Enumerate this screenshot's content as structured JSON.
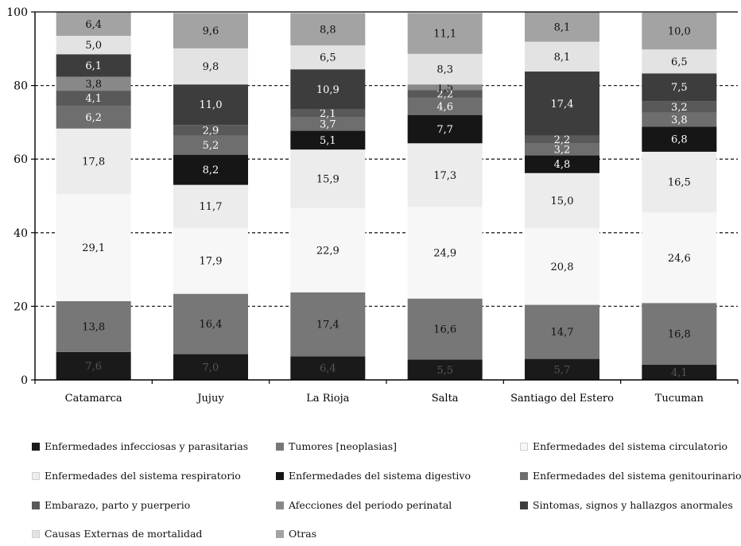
{
  "chart_data": {
    "type": "bar",
    "stacked": true,
    "title": "",
    "xlabel": "",
    "ylabel": "",
    "ylim": [
      0,
      100
    ],
    "yticks": [
      0,
      20,
      40,
      60,
      80,
      100
    ],
    "grid": "dashed-horizontal",
    "legend_position": "bottom",
    "categories": [
      "Catamarca",
      "Jujuy",
      "La Rioja",
      "Salta",
      "Santiago del Estero",
      "Tucuman"
    ],
    "series": [
      {
        "name": "Enfermedades infecciosas y parasitarias",
        "color": "#1a1a1a",
        "label_color": "#555555",
        "values": [
          7.6,
          7.0,
          6.4,
          5.5,
          5.7,
          4.1
        ],
        "labels": [
          "7,6",
          "7,0",
          "6,4",
          "5,5",
          "5,7",
          "4,1"
        ]
      },
      {
        "name": "Tumores [neoplasias]",
        "color": "#777777",
        "label_color": "#111111",
        "values": [
          13.8,
          16.4,
          17.4,
          16.6,
          14.7,
          16.8
        ],
        "labels": [
          "13,8",
          "16,4",
          "17,4",
          "16,6",
          "14,7",
          "16,8"
        ]
      },
      {
        "name": "Enfermedades del sistema circulatorio",
        "color": "#f7f7f7",
        "label_color": "#111111",
        "values": [
          29.1,
          17.9,
          22.9,
          24.9,
          20.8,
          24.6
        ],
        "labels": [
          "29,1",
          "17,9",
          "22,9",
          "24,9",
          "20,8",
          "24,6"
        ]
      },
      {
        "name": "Enfermedades del sistema respiratorio",
        "color": "#ececec",
        "label_color": "#111111",
        "values": [
          17.8,
          11.7,
          15.9,
          17.3,
          15.0,
          16.5
        ],
        "labels": [
          "17,8",
          "11,7",
          "15,9",
          "17,3",
          "15,0",
          "16,5"
        ]
      },
      {
        "name": "Enfermedades del sistema digestivo",
        "color": "#161616",
        "label_color": "#ffffff",
        "values": [
          0,
          8.2,
          5.1,
          7.7,
          4.8,
          6.8
        ],
        "labels": [
          "",
          "8,2",
          "5,1",
          "7,7",
          "4,8",
          "6,8"
        ]
      },
      {
        "name": "Enfermedades del sistema genitourinario",
        "color": "#6e6e6e",
        "label_color": "#ffffff",
        "values": [
          6.2,
          5.2,
          3.7,
          4.6,
          3.2,
          3.8
        ],
        "labels": [
          "6,2",
          "5,2",
          "3,7",
          "4,6",
          "3,2",
          "3,8"
        ]
      },
      {
        "name": "Embarazo, parto y puerperio",
        "color": "#595959",
        "label_color": "#ffffff",
        "values": [
          4.1,
          2.9,
          2.1,
          2.2,
          2.2,
          3.2
        ],
        "labels": [
          "4,1",
          "2,9",
          "2,1",
          "2,2",
          "2,2",
          "3,2"
        ]
      },
      {
        "name": "Afecciones del periodo perinatal",
        "color": "#888888",
        "label_color": "#111111",
        "values": [
          3.8,
          0,
          0,
          1.5,
          0,
          0
        ],
        "labels": [
          "3,8",
          "",
          "",
          "1,5",
          "",
          ""
        ]
      },
      {
        "name": "Sintomas, signos y hallazgos anormales",
        "color": "#3d3d3d",
        "label_color": "#ffffff",
        "values": [
          6.1,
          11.0,
          10.9,
          0,
          17.4,
          7.5
        ],
        "labels": [
          "6,1",
          "11,0",
          "10,9",
          "",
          "17,4",
          "7,5"
        ]
      },
      {
        "name": "Causas Externas de mortalidad",
        "color": "#e3e3e3",
        "label_color": "#111111",
        "values": [
          5.0,
          9.8,
          6.5,
          8.3,
          8.1,
          6.5
        ],
        "labels": [
          "5,0",
          "9,8",
          "6,5",
          "8,3",
          "8,1",
          "6,5"
        ]
      },
      {
        "name": "Otras",
        "color": "#a3a3a3",
        "label_color": "#111111",
        "values": [
          6.4,
          9.6,
          8.8,
          11.1,
          8.1,
          10.0
        ],
        "labels": [
          "6,4",
          "9,6",
          "8,8",
          "11,1",
          "8,1",
          "10,0"
        ]
      }
    ]
  }
}
